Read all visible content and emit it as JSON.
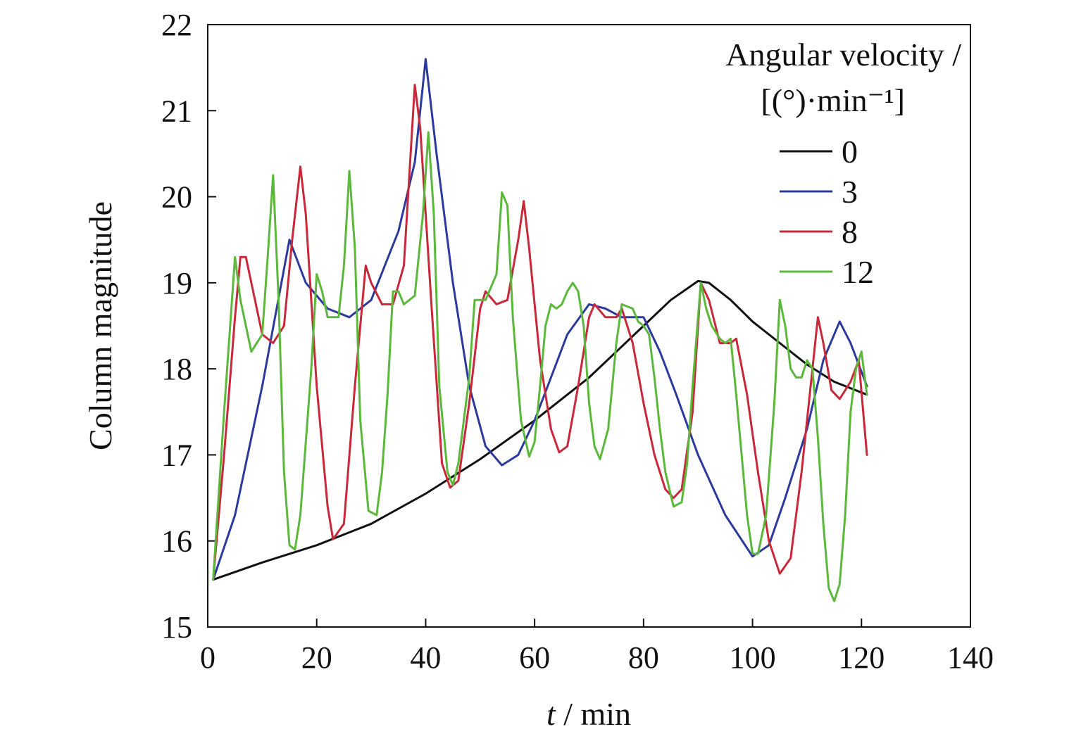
{
  "chart_data": {
    "type": "line",
    "xlabel_var": "t",
    "xlabel_unit": " / min",
    "ylabel": "Column magnitude",
    "xlim": [
      0,
      140
    ],
    "ylim": [
      15,
      22
    ],
    "xticks": [
      0,
      20,
      40,
      60,
      80,
      100,
      120,
      140
    ],
    "yticks": [
      15,
      16,
      17,
      18,
      19,
      20,
      21,
      22
    ],
    "grid": false,
    "legend": {
      "title_line1": "Angular velocity /",
      "title_line2": "[(°)·min⁻¹]",
      "placement": "top-right"
    },
    "series": [
      {
        "name": "0",
        "color": "#111111",
        "points": [
          [
            1,
            15.55
          ],
          [
            10,
            15.75
          ],
          [
            20,
            15.95
          ],
          [
            30,
            16.2
          ],
          [
            40,
            16.55
          ],
          [
            50,
            16.95
          ],
          [
            60,
            17.4
          ],
          [
            70,
            17.9
          ],
          [
            75,
            18.2
          ],
          [
            80,
            18.5
          ],
          [
            85,
            18.8
          ],
          [
            90,
            19.02
          ],
          [
            92,
            19.0
          ],
          [
            96,
            18.8
          ],
          [
            100,
            18.55
          ],
          [
            105,
            18.3
          ],
          [
            110,
            18.05
          ],
          [
            115,
            17.85
          ],
          [
            121,
            17.7
          ]
        ]
      },
      {
        "name": "3",
        "color": "#2b3a9c",
        "points": [
          [
            1,
            15.55
          ],
          [
            5,
            16.3
          ],
          [
            10,
            17.8
          ],
          [
            15,
            19.5
          ],
          [
            18,
            19.0
          ],
          [
            22,
            18.7
          ],
          [
            26,
            18.6
          ],
          [
            30,
            18.8
          ],
          [
            35,
            19.6
          ],
          [
            38,
            20.4
          ],
          [
            40,
            21.6
          ],
          [
            42,
            20.5
          ],
          [
            45,
            19.0
          ],
          [
            48,
            17.8
          ],
          [
            51,
            17.1
          ],
          [
            54,
            16.88
          ],
          [
            57,
            17.0
          ],
          [
            60,
            17.4
          ],
          [
            63,
            17.9
          ],
          [
            66,
            18.4
          ],
          [
            70,
            18.75
          ],
          [
            73,
            18.7
          ],
          [
            76,
            18.6
          ],
          [
            80,
            18.6
          ],
          [
            83,
            18.2
          ],
          [
            86,
            17.7
          ],
          [
            90,
            17.0
          ],
          [
            95,
            16.3
          ],
          [
            100,
            15.82
          ],
          [
            103,
            15.95
          ],
          [
            106,
            16.5
          ],
          [
            110,
            17.3
          ],
          [
            113,
            18.1
          ],
          [
            116,
            18.55
          ],
          [
            118,
            18.3
          ],
          [
            121,
            17.8
          ]
        ]
      },
      {
        "name": "8",
        "color": "#c8283a",
        "points": [
          [
            1,
            15.55
          ],
          [
            3,
            17.0
          ],
          [
            5,
            18.6
          ],
          [
            6,
            19.3
          ],
          [
            7,
            19.3
          ],
          [
            8,
            19.0
          ],
          [
            10,
            18.4
          ],
          [
            12,
            18.3
          ],
          [
            14,
            18.5
          ],
          [
            15.5,
            19.5
          ],
          [
            17,
            20.35
          ],
          [
            18,
            19.8
          ],
          [
            20,
            17.8
          ],
          [
            22,
            16.4
          ],
          [
            23,
            16.02
          ],
          [
            25,
            16.2
          ],
          [
            27,
            17.8
          ],
          [
            29,
            19.2
          ],
          [
            30,
            19.0
          ],
          [
            32,
            18.75
          ],
          [
            34,
            18.75
          ],
          [
            36,
            19.2
          ],
          [
            38,
            21.3
          ],
          [
            39,
            20.8
          ],
          [
            41,
            18.8
          ],
          [
            43,
            16.9
          ],
          [
            44.5,
            16.62
          ],
          [
            46,
            16.7
          ],
          [
            48,
            17.6
          ],
          [
            50,
            18.7
          ],
          [
            51,
            18.9
          ],
          [
            53,
            18.75
          ],
          [
            55,
            18.8
          ],
          [
            57,
            19.5
          ],
          [
            58,
            19.95
          ],
          [
            59,
            19.4
          ],
          [
            61,
            18.1
          ],
          [
            63,
            17.3
          ],
          [
            64.5,
            17.03
          ],
          [
            66,
            17.1
          ],
          [
            68,
            17.8
          ],
          [
            70,
            18.6
          ],
          [
            71,
            18.75
          ],
          [
            73,
            18.6
          ],
          [
            75,
            18.6
          ],
          [
            76,
            18.7
          ],
          [
            78,
            18.3
          ],
          [
            80,
            17.6
          ],
          [
            82,
            17.0
          ],
          [
            84,
            16.6
          ],
          [
            85.5,
            16.5
          ],
          [
            87,
            16.6
          ],
          [
            89,
            17.5
          ],
          [
            90.5,
            19.0
          ],
          [
            92,
            18.8
          ],
          [
            94,
            18.3
          ],
          [
            96,
            18.3
          ],
          [
            97,
            18.35
          ],
          [
            99,
            17.7
          ],
          [
            101,
            16.8
          ],
          [
            103,
            16.0
          ],
          [
            105,
            15.62
          ],
          [
            107,
            15.8
          ],
          [
            109,
            16.8
          ],
          [
            111,
            18.0
          ],
          [
            112,
            18.6
          ],
          [
            113,
            18.3
          ],
          [
            114.5,
            17.75
          ],
          [
            116,
            17.65
          ],
          [
            118,
            17.85
          ],
          [
            119.5,
            18.1
          ],
          [
            121,
            17.0
          ]
        ]
      },
      {
        "name": "12",
        "color": "#5bb83a",
        "points": [
          [
            1,
            15.55
          ],
          [
            3,
            17.5
          ],
          [
            5,
            19.3
          ],
          [
            6,
            18.8
          ],
          [
            8,
            18.2
          ],
          [
            10,
            18.4
          ],
          [
            11,
            19.3
          ],
          [
            12,
            20.25
          ],
          [
            13,
            18.8
          ],
          [
            14,
            16.8
          ],
          [
            15,
            15.95
          ],
          [
            16,
            15.9
          ],
          [
            17,
            16.3
          ],
          [
            19,
            18.0
          ],
          [
            20,
            19.1
          ],
          [
            21,
            18.9
          ],
          [
            22,
            18.6
          ],
          [
            24,
            18.6
          ],
          [
            25,
            19.2
          ],
          [
            26,
            20.3
          ],
          [
            27,
            19.4
          ],
          [
            28,
            17.4
          ],
          [
            29.5,
            16.35
          ],
          [
            31,
            16.3
          ],
          [
            32,
            16.8
          ],
          [
            33,
            17.7
          ],
          [
            34,
            18.9
          ],
          [
            35,
            18.9
          ],
          [
            36,
            18.75
          ],
          [
            38,
            18.85
          ],
          [
            39.5,
            19.8
          ],
          [
            40.5,
            20.75
          ],
          [
            41.5,
            19.8
          ],
          [
            42.5,
            17.8
          ],
          [
            44,
            16.8
          ],
          [
            45,
            16.65
          ],
          [
            46,
            16.9
          ],
          [
            48,
            17.9
          ],
          [
            49,
            18.8
          ],
          [
            51,
            18.8
          ],
          [
            53,
            19.1
          ],
          [
            54,
            20.05
          ],
          [
            55,
            19.9
          ],
          [
            56,
            18.6
          ],
          [
            57.5,
            17.4
          ],
          [
            59,
            16.98
          ],
          [
            60,
            17.15
          ],
          [
            61,
            17.8
          ],
          [
            62,
            18.5
          ],
          [
            63,
            18.75
          ],
          [
            64,
            18.7
          ],
          [
            65,
            18.75
          ],
          [
            66,
            18.9
          ],
          [
            67,
            19.0
          ],
          [
            68,
            18.9
          ],
          [
            69,
            18.5
          ],
          [
            70,
            17.6
          ],
          [
            71,
            17.1
          ],
          [
            72,
            16.95
          ],
          [
            73.5,
            17.3
          ],
          [
            75,
            18.3
          ],
          [
            76,
            18.75
          ],
          [
            78,
            18.7
          ],
          [
            79,
            18.55
          ],
          [
            80,
            18.5
          ],
          [
            81,
            18.4
          ],
          [
            82,
            17.9
          ],
          [
            83,
            17.3
          ],
          [
            84,
            16.8
          ],
          [
            85.5,
            16.4
          ],
          [
            87,
            16.45
          ],
          [
            88,
            16.9
          ],
          [
            89,
            17.8
          ],
          [
            90.5,
            19.0
          ],
          [
            91.5,
            18.7
          ],
          [
            92.5,
            18.5
          ],
          [
            94,
            18.35
          ],
          [
            95,
            18.3
          ],
          [
            96,
            18.35
          ],
          [
            97,
            17.7
          ],
          [
            98,
            17.0
          ],
          [
            99,
            16.3
          ],
          [
            100,
            15.85
          ],
          [
            101,
            15.85
          ],
          [
            102.5,
            16.3
          ],
          [
            104,
            17.6
          ],
          [
            105,
            18.8
          ],
          [
            106,
            18.5
          ],
          [
            107,
            18.0
          ],
          [
            108,
            17.9
          ],
          [
            109,
            17.9
          ],
          [
            110,
            18.1
          ],
          [
            111,
            18.0
          ],
          [
            112,
            17.2
          ],
          [
            113,
            16.2
          ],
          [
            114,
            15.45
          ],
          [
            115,
            15.3
          ],
          [
            116,
            15.5
          ],
          [
            117,
            16.3
          ],
          [
            118,
            17.5
          ],
          [
            119,
            18.0
          ],
          [
            120,
            18.2
          ],
          [
            121,
            17.7
          ]
        ]
      }
    ]
  }
}
